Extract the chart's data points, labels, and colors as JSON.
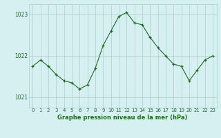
{
  "x": [
    0,
    1,
    2,
    3,
    4,
    5,
    6,
    7,
    8,
    9,
    10,
    11,
    12,
    13,
    14,
    15,
    16,
    17,
    18,
    19,
    20,
    21,
    22,
    23
  ],
  "y": [
    1021.75,
    1021.9,
    1021.75,
    1021.55,
    1021.4,
    1021.35,
    1021.2,
    1021.3,
    1021.7,
    1022.25,
    1022.6,
    1022.95,
    1023.05,
    1022.8,
    1022.75,
    1022.45,
    1022.2,
    1022.0,
    1021.8,
    1021.75,
    1021.4,
    1021.65,
    1021.9,
    1022.0
  ],
  "line_color": "#1a6e1a",
  "marker_color": "#1a6e1a",
  "bg_color": "#d6eff0",
  "grid_color": "#aacfcf",
  "tick_label_color": "#1a6e1a",
  "xlabel": "Graphe pression niveau de la mer (hPa)",
  "yticks": [
    1021,
    1022,
    1023
  ],
  "ylim": [
    1020.75,
    1023.25
  ],
  "xlim": [
    -0.5,
    23.5
  ]
}
